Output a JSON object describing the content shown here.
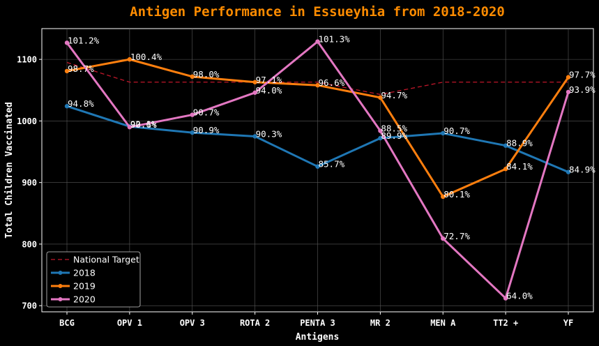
{
  "chart_data": {
    "type": "line",
    "title": "Antigen Performance in Essueyhia from 2018-2020",
    "xlabel": "Antigens",
    "ylabel": "Total Children Vaccinated",
    "categories": [
      "BCG",
      "OPV 1",
      "OPV 3",
      "ROTA 2",
      "PENTA 3",
      "MR 2",
      "MEN A",
      "TT2 +",
      "YF"
    ],
    "ylim": [
      690,
      1150
    ],
    "yticks": [
      700,
      800,
      900,
      1000,
      1100
    ],
    "grid": true,
    "legend_position": "lower-left",
    "target": {
      "name": "National Target",
      "color": "#c0172a",
      "values": [
        1095,
        1063,
        1063,
        1063,
        1063,
        1043,
        1063,
        1063,
        1063
      ]
    },
    "series": [
      {
        "name": "2018",
        "color": "#1f77b4",
        "values": [
          1024,
          991,
          981,
          975,
          926,
          972,
          980,
          960,
          917
        ],
        "labels": [
          "94.8%",
          "92.1%",
          "90.9%",
          "90.3%",
          "85.7%",
          "89.9%",
          "90.7%",
          "88.9%",
          "84.9%"
        ]
      },
      {
        "name": "2019",
        "color": "#ff7f0e",
        "values": [
          1081,
          1100,
          1072,
          1063,
          1058,
          1038,
          877,
          922,
          1071
        ],
        "labels": [
          "98.7%",
          "100.4%",
          "98.0%",
          "97.1%",
          "96.6%",
          "94.7%",
          "80.1%",
          "84.1%",
          "97.7%"
        ]
      },
      {
        "name": "2020",
        "color": "#e377c2",
        "values": [
          1127,
          990,
          1010,
          1046,
          1129,
          984,
          809,
          712,
          1047
        ],
        "labels": [
          "101.2%",
          "90.6%",
          "90.7%",
          "94.0%",
          "101.3%",
          "88.5%",
          "72.7%",
          "64.0%",
          "93.9%"
        ]
      }
    ]
  }
}
